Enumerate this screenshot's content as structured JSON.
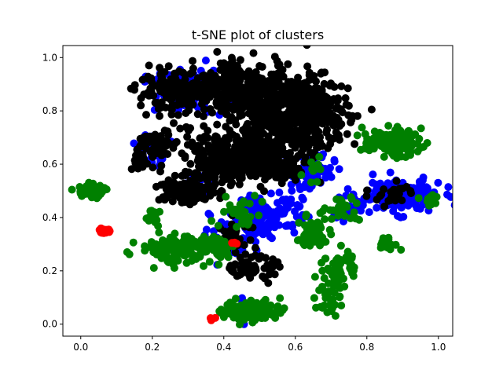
{
  "chart_data": {
    "type": "scatter",
    "title": "t-SNE plot of clusters",
    "xlabel": "",
    "ylabel": "",
    "xlim": [
      -0.05,
      1.04
    ],
    "ylim": [
      -0.045,
      1.045
    ],
    "xticks": [
      0.0,
      0.2,
      0.4,
      0.6,
      0.8,
      1.0
    ],
    "yticks": [
      0.0,
      0.2,
      0.4,
      0.6,
      0.8,
      1.0
    ],
    "xtick_labels": [
      "0.0",
      "0.2",
      "0.4",
      "0.6",
      "0.8",
      "1.0"
    ],
    "ytick_labels": [
      "0.0",
      "0.2",
      "0.4",
      "0.6",
      "0.8",
      "1.0"
    ],
    "grid": false,
    "legend": "none",
    "series": [
      {
        "name": "blue",
        "color": "#0000ff",
        "clusters": [
          {
            "x": 0.29,
            "y": 0.87,
            "sx": 0.06,
            "sy": 0.04,
            "n": 90
          },
          {
            "x": 0.2,
            "y": 0.65,
            "sx": 0.02,
            "sy": 0.03,
            "n": 30
          },
          {
            "x": 0.52,
            "y": 0.42,
            "sx": 0.05,
            "sy": 0.04,
            "n": 120
          },
          {
            "x": 0.65,
            "y": 0.57,
            "sx": 0.03,
            "sy": 0.04,
            "n": 50
          },
          {
            "x": 0.89,
            "y": 0.48,
            "sx": 0.06,
            "sy": 0.03,
            "n": 160
          },
          {
            "x": 0.75,
            "y": 0.43,
            "sx": 0.03,
            "sy": 0.02,
            "n": 40
          },
          {
            "x": 0.43,
            "y": 0.32,
            "sx": 0.04,
            "sy": 0.04,
            "n": 50
          },
          {
            "x": 0.48,
            "y": 0.06,
            "sx": 0.02,
            "sy": 0.02,
            "n": 15
          },
          {
            "x": 0.33,
            "y": 0.52,
            "sx": 0.02,
            "sy": 0.02,
            "n": 15
          }
        ]
      },
      {
        "name": "black",
        "color": "#000000",
        "clusters": [
          {
            "x": 0.28,
            "y": 0.87,
            "sx": 0.06,
            "sy": 0.035,
            "n": 200
          },
          {
            "x": 0.46,
            "y": 0.88,
            "sx": 0.07,
            "sy": 0.05,
            "n": 250
          },
          {
            "x": 0.56,
            "y": 0.75,
            "sx": 0.06,
            "sy": 0.09,
            "n": 350
          },
          {
            "x": 0.67,
            "y": 0.8,
            "sx": 0.04,
            "sy": 0.06,
            "n": 180
          },
          {
            "x": 0.41,
            "y": 0.62,
            "sx": 0.06,
            "sy": 0.05,
            "n": 280
          },
          {
            "x": 0.5,
            "y": 0.63,
            "sx": 0.04,
            "sy": 0.04,
            "n": 100
          },
          {
            "x": 0.29,
            "y": 0.5,
            "sx": 0.04,
            "sy": 0.025,
            "n": 130
          },
          {
            "x": 0.21,
            "y": 0.67,
            "sx": 0.025,
            "sy": 0.03,
            "n": 60
          },
          {
            "x": 0.17,
            "y": 0.61,
            "sx": 0.012,
            "sy": 0.02,
            "n": 20
          },
          {
            "x": 0.48,
            "y": 0.21,
            "sx": 0.03,
            "sy": 0.02,
            "n": 70
          },
          {
            "x": 0.43,
            "y": 0.34,
            "sx": 0.03,
            "sy": 0.03,
            "n": 30
          },
          {
            "x": 0.87,
            "y": 0.49,
            "sx": 0.03,
            "sy": 0.02,
            "n": 25
          },
          {
            "x": 0.3,
            "y": 0.73,
            "sx": 0.01,
            "sy": 0.01,
            "n": 6
          },
          {
            "x": 0.42,
            "y": 0.98,
            "sx": 0.01,
            "sy": 0.015,
            "n": 6
          },
          {
            "x": 0.57,
            "y": 0.58,
            "sx": 0.02,
            "sy": 0.03,
            "n": 40
          }
        ]
      },
      {
        "name": "green",
        "color": "#008000",
        "clusters": [
          {
            "x": 0.03,
            "y": 0.5,
            "sx": 0.018,
            "sy": 0.012,
            "n": 70
          },
          {
            "x": 0.27,
            "y": 0.28,
            "sx": 0.05,
            "sy": 0.025,
            "n": 150
          },
          {
            "x": 0.37,
            "y": 0.3,
            "sx": 0.025,
            "sy": 0.015,
            "n": 40
          },
          {
            "x": 0.2,
            "y": 0.4,
            "sx": 0.015,
            "sy": 0.015,
            "n": 20
          },
          {
            "x": 0.87,
            "y": 0.68,
            "sx": 0.04,
            "sy": 0.025,
            "n": 110
          },
          {
            "x": 0.48,
            "y": 0.05,
            "sx": 0.04,
            "sy": 0.02,
            "n": 120
          },
          {
            "x": 0.7,
            "y": 0.14,
            "sx": 0.02,
            "sy": 0.06,
            "n": 50
          },
          {
            "x": 0.73,
            "y": 0.22,
            "sx": 0.02,
            "sy": 0.03,
            "n": 30
          },
          {
            "x": 0.66,
            "y": 0.36,
            "sx": 0.02,
            "sy": 0.03,
            "n": 40
          },
          {
            "x": 0.64,
            "y": 0.31,
            "sx": 0.02,
            "sy": 0.01,
            "n": 20
          },
          {
            "x": 0.86,
            "y": 0.3,
            "sx": 0.015,
            "sy": 0.012,
            "n": 20
          },
          {
            "x": 0.98,
            "y": 0.47,
            "sx": 0.012,
            "sy": 0.015,
            "n": 15
          },
          {
            "x": 0.45,
            "y": 0.42,
            "sx": 0.03,
            "sy": 0.03,
            "n": 30
          },
          {
            "x": 0.73,
            "y": 0.43,
            "sx": 0.025,
            "sy": 0.03,
            "n": 25
          },
          {
            "x": 0.65,
            "y": 0.58,
            "sx": 0.02,
            "sy": 0.02,
            "n": 12
          },
          {
            "x": 0.4,
            "y": 0.26,
            "sx": 0.01,
            "sy": 0.01,
            "n": 8
          }
        ]
      },
      {
        "name": "red",
        "color": "#ff0000",
        "clusters": [
          {
            "x": 0.07,
            "y": 0.35,
            "sx": 0.008,
            "sy": 0.006,
            "n": 18
          },
          {
            "x": 0.37,
            "y": 0.02,
            "sx": 0.004,
            "sy": 0.003,
            "n": 4
          },
          {
            "x": 0.43,
            "y": 0.3,
            "sx": 0.004,
            "sy": 0.004,
            "n": 4
          }
        ]
      }
    ]
  }
}
